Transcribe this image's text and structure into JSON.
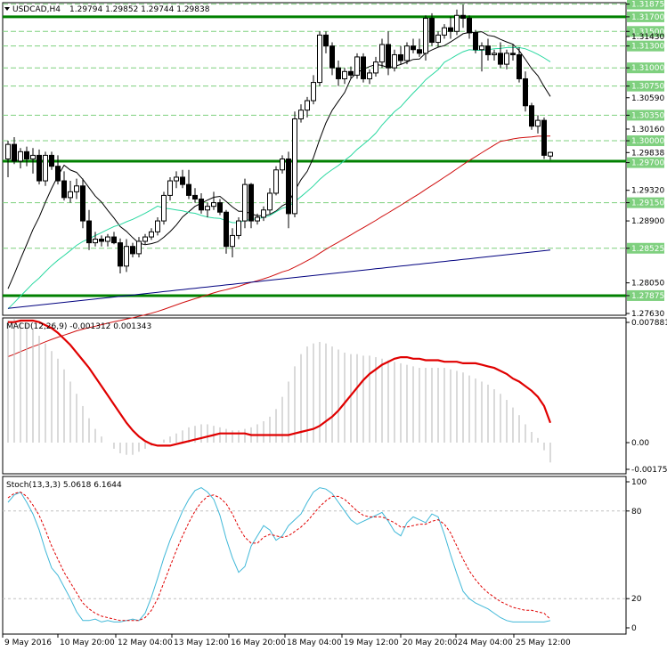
{
  "header": {
    "symbol": "USDCAD,H4",
    "ohlc": "1.29794 1.29852 1.29744 1.29838"
  },
  "colors": {
    "bull": "#ffffff",
    "bear": "#000000",
    "ma_fast": "#000000",
    "ma_mid": "#2ad8a0",
    "ma_slow": "#d01010",
    "ma_long": "#00007f",
    "level": "#008000",
    "level_dash": "#7fd07f",
    "macd_line": "#e00000",
    "macd_hist": "#c0c0c0",
    "stoch_main": "#40b8d8",
    "stoch_signal": "#e00000"
  },
  "chart_data": [
    {
      "type": "candlestick",
      "title": "USDCAD,H4",
      "ylim": [
        1.2763,
        1.3187
      ],
      "y_ticks": [
        "1.31875",
        "1.31700",
        "1.31500",
        "1.31430",
        "1.31300",
        "1.31000",
        "1.30750",
        "1.30590",
        "1.30350",
        "1.30160",
        "1.30000",
        "1.29838",
        "1.29700",
        "1.29320",
        "1.29150",
        "1.28900",
        "1.28525",
        "1.28050",
        "1.27875",
        "1.27630"
      ],
      "highlight_levels": [
        "1.31875",
        "1.31700",
        "1.31500",
        "1.31300",
        "1.31000",
        "1.30750",
        "1.30350",
        "1.30000",
        "1.29838",
        "1.29700",
        "1.29150",
        "1.28525",
        "1.27875"
      ],
      "level_tag_prices": [
        1.31875,
        1.317,
        1.315,
        1.313,
        1.31,
        1.3075,
        1.3035,
        1.3,
        1.29838,
        1.297,
        1.2915,
        1.28525,
        1.27875
      ],
      "support_resistance": [
        1.317,
        1.2972,
        1.27875
      ],
      "dashed_levels": [
        1.31875,
        1.315,
        1.313,
        1.31,
        1.3075,
        1.3035,
        1.3,
        1.2915,
        1.28525
      ],
      "x_ticks": [
        "9 May 2016",
        "10 May 20:00",
        "12 May 04:00",
        "13 May 12:00",
        "16 May 20:00",
        "18 May 04:00",
        "19 May 12:00",
        "20 May 20:00",
        "24 May 04:00",
        "25 May 12:00"
      ],
      "candles": [
        [
          1.2975,
          1.3,
          1.295,
          1.2995
        ],
        [
          1.2995,
          1.3005,
          1.2968,
          1.2972
        ],
        [
          1.2972,
          1.299,
          1.2962,
          1.2985
        ],
        [
          1.2985,
          1.2992,
          1.2965,
          1.2975
        ],
        [
          1.2975,
          1.299,
          1.2955,
          1.298
        ],
        [
          1.298,
          1.2988,
          1.294,
          1.2945
        ],
        [
          1.2945,
          1.2985,
          1.2938,
          1.298
        ],
        [
          1.298,
          1.2985,
          1.296,
          1.2965
        ],
        [
          1.2965,
          1.298,
          1.294,
          1.2945
        ],
        [
          1.2945,
          1.2958,
          1.2918,
          1.2922
        ],
        [
          1.2922,
          1.2945,
          1.2915,
          1.293
        ],
        [
          1.293,
          1.2948,
          1.292,
          1.2938
        ],
        [
          1.2938,
          1.2948,
          1.288,
          1.289
        ],
        [
          1.289,
          1.2905,
          1.285,
          1.286
        ],
        [
          1.286,
          1.2875,
          1.2855,
          1.2865
        ],
        [
          1.2865,
          1.287,
          1.2855,
          1.2862
        ],
        [
          1.2862,
          1.2872,
          1.2855,
          1.2868
        ],
        [
          1.2868,
          1.2875,
          1.2858,
          1.286
        ],
        [
          1.286,
          1.2866,
          1.2818,
          1.2828
        ],
        [
          1.2828,
          1.2865,
          1.282,
          1.2855
        ],
        [
          1.2855,
          1.286,
          1.284,
          1.2845
        ],
        [
          1.2845,
          1.2868,
          1.284,
          1.2862
        ],
        [
          1.2862,
          1.2872,
          1.2858,
          1.2868
        ],
        [
          1.2868,
          1.288,
          1.2864,
          1.2875
        ],
        [
          1.2875,
          1.2895,
          1.287,
          1.289
        ],
        [
          1.289,
          1.293,
          1.2885,
          1.2925
        ],
        [
          1.2925,
          1.295,
          1.2918,
          1.2945
        ],
        [
          1.2945,
          1.2958,
          1.2935,
          1.295
        ],
        [
          1.295,
          1.296,
          1.2935,
          1.294
        ],
        [
          1.294,
          1.296,
          1.292,
          1.2925
        ],
        [
          1.2925,
          1.2935,
          1.2915,
          1.292
        ],
        [
          1.292,
          1.2928,
          1.29,
          1.2905
        ],
        [
          1.2905,
          1.2915,
          1.2895,
          1.291
        ],
        [
          1.291,
          1.293,
          1.2905,
          1.2915
        ],
        [
          1.2915,
          1.292,
          1.2898,
          1.2902
        ],
        [
          1.2902,
          1.2905,
          1.2845,
          1.2855
        ],
        [
          1.2855,
          1.288,
          1.284,
          1.287
        ],
        [
          1.287,
          1.2895,
          1.2865,
          1.289
        ],
        [
          1.289,
          1.2948,
          1.288,
          1.294
        ],
        [
          1.294,
          1.2942,
          1.288,
          1.289
        ],
        [
          1.289,
          1.29,
          1.2885,
          1.2895
        ],
        [
          1.2895,
          1.291,
          1.289,
          1.2905
        ],
        [
          1.2905,
          1.2935,
          1.29,
          1.2928
        ],
        [
          1.2928,
          1.2965,
          1.2925,
          1.296
        ],
        [
          1.296,
          1.298,
          1.2955,
          1.2975
        ],
        [
          1.2975,
          1.2985,
          1.288,
          1.29
        ],
        [
          1.29,
          1.304,
          1.2895,
          1.303
        ],
        [
          1.303,
          1.305,
          1.3025,
          1.3042
        ],
        [
          1.3042,
          1.306,
          1.3032,
          1.3055
        ],
        [
          1.3055,
          1.309,
          1.305,
          1.308
        ],
        [
          1.308,
          1.315,
          1.3075,
          1.3145
        ],
        [
          1.3145,
          1.315,
          1.312,
          1.313
        ],
        [
          1.313,
          1.3135,
          1.309,
          1.31
        ],
        [
          1.31,
          1.311,
          1.3075,
          1.3085
        ],
        [
          1.3085,
          1.31,
          1.3078,
          1.3095
        ],
        [
          1.3095,
          1.3102,
          1.3085,
          1.309
        ],
        [
          1.309,
          1.312,
          1.3085,
          1.3115
        ],
        [
          1.3115,
          1.312,
          1.308,
          1.3085
        ],
        [
          1.3085,
          1.3098,
          1.3078,
          1.3093
        ],
        [
          1.3093,
          1.3115,
          1.3088,
          1.3108
        ],
        [
          1.3108,
          1.314,
          1.31,
          1.3132
        ],
        [
          1.3132,
          1.315,
          1.309,
          1.31
        ],
        [
          1.31,
          1.3125,
          1.3095,
          1.3118
        ],
        [
          1.3118,
          1.313,
          1.3105,
          1.311
        ],
        [
          1.311,
          1.3135,
          1.3105,
          1.313
        ],
        [
          1.313,
          1.314,
          1.312,
          1.3125
        ],
        [
          1.3125,
          1.314,
          1.3115,
          1.312
        ],
        [
          1.312,
          1.3172,
          1.311,
          1.3168
        ],
        [
          1.3168,
          1.3175,
          1.313,
          1.3135
        ],
        [
          1.3135,
          1.315,
          1.3128,
          1.3145
        ],
        [
          1.3145,
          1.316,
          1.314,
          1.3155
        ],
        [
          1.3155,
          1.317,
          1.314,
          1.315
        ],
        [
          1.315,
          1.318,
          1.3145,
          1.3172
        ],
        [
          1.3172,
          1.3187,
          1.3155,
          1.3168
        ],
        [
          1.3168,
          1.3172,
          1.314,
          1.3148
        ],
        [
          1.3148,
          1.3152,
          1.312,
          1.3125
        ],
        [
          1.3125,
          1.3135,
          1.3095,
          1.313
        ],
        [
          1.313,
          1.314,
          1.311,
          1.3118
        ],
        [
          1.3118,
          1.3125,
          1.311,
          1.312
        ],
        [
          1.312,
          1.3135,
          1.31,
          1.3105
        ],
        [
          1.3105,
          1.3125,
          1.3098,
          1.312
        ],
        [
          1.312,
          1.3132,
          1.311,
          1.3118
        ],
        [
          1.3118,
          1.3128,
          1.308,
          1.3085
        ],
        [
          1.3085,
          1.3095,
          1.304,
          1.3048
        ],
        [
          1.3048,
          1.3052,
          1.3015,
          1.302
        ],
        [
          1.302,
          1.3035,
          1.301,
          1.3028
        ],
        [
          1.3028,
          1.3032,
          1.2975,
          1.298
        ],
        [
          1.2979,
          1.2985,
          1.2974,
          1.2984
        ]
      ]
    },
    {
      "type": "line",
      "title": "MACD(12,26,9) -0.001312 0.001343",
      "y_ticks": [
        "0.007881",
        "0.00",
        "-0.00175"
      ],
      "ylim": [
        -0.00175,
        0.007881
      ],
      "histogram": [
        0.008,
        0.0081,
        0.008,
        0.0078,
        0.0075,
        0.007,
        0.0065,
        0.006,
        0.0055,
        0.0048,
        0.004,
        0.0032,
        0.0024,
        0.0016,
        0.0009,
        0.0004,
        0.0,
        -0.0004,
        -0.0007,
        -0.0008,
        -0.0008,
        -0.0006,
        -0.0004,
        -0.0002,
        0.0,
        0.0002,
        0.0004,
        0.0006,
        0.0008,
        0.001,
        0.0011,
        0.0012,
        0.0012,
        0.0011,
        0.001,
        0.0009,
        0.0008,
        0.0008,
        0.0009,
        0.001,
        0.0012,
        0.0014,
        0.0017,
        0.0022,
        0.003,
        0.004,
        0.005,
        0.0058,
        0.0063,
        0.0065,
        0.0066,
        0.0065,
        0.0063,
        0.0061,
        0.0059,
        0.0058,
        0.0058,
        0.0057,
        0.0057,
        0.0056,
        0.0055,
        0.0054,
        0.0053,
        0.0052,
        0.0051,
        0.005,
        0.0049,
        0.0049,
        0.0049,
        0.0049,
        0.0049,
        0.0048,
        0.0047,
        0.0046,
        0.0044,
        0.0042,
        0.004,
        0.0038,
        0.0035,
        0.0032,
        0.0028,
        0.0023,
        0.0018,
        0.0012,
        0.0007,
        0.0003,
        -0.0005,
        -0.0013
      ],
      "signal": [
        0.0079,
        0.0079,
        0.008,
        0.008,
        0.008,
        0.0079,
        0.0077,
        0.0075,
        0.0072,
        0.0068,
        0.0064,
        0.0059,
        0.0054,
        0.0049,
        0.0043,
        0.0037,
        0.0031,
        0.0025,
        0.0019,
        0.0013,
        0.0008,
        0.0004,
        0.0001,
        -0.0001,
        -0.0002,
        -0.0002,
        -0.0002,
        -0.0001,
        0.0,
        0.0001,
        0.0002,
        0.0003,
        0.0004,
        0.0005,
        0.0006,
        0.0006,
        0.0006,
        0.0006,
        0.0006,
        0.0005,
        0.0005,
        0.0005,
        0.0005,
        0.0005,
        0.0005,
        0.0005,
        0.0006,
        0.0007,
        0.0008,
        0.0009,
        0.0011,
        0.0014,
        0.0017,
        0.0021,
        0.0026,
        0.0031,
        0.0036,
        0.0041,
        0.0045,
        0.0048,
        0.0051,
        0.0053,
        0.0055,
        0.0056,
        0.0056,
        0.0055,
        0.0055,
        0.0054,
        0.0054,
        0.0054,
        0.0053,
        0.0053,
        0.0053,
        0.0052,
        0.0052,
        0.0052,
        0.0051,
        0.005,
        0.0049,
        0.0047,
        0.0045,
        0.0042,
        0.004,
        0.0037,
        0.0034,
        0.003,
        0.0024,
        0.0013
      ]
    },
    {
      "type": "line",
      "title": "Stoch(13,3,3) 5.0618 6.1644",
      "y_ticks": [
        "100",
        "80",
        "20",
        "0"
      ],
      "ylim": [
        0,
        100
      ],
      "main": [
        86,
        91,
        93,
        86,
        78,
        67,
        53,
        41,
        36,
        28,
        20,
        11,
        5,
        5,
        6,
        4,
        5,
        4,
        4,
        5,
        6,
        5,
        10,
        21,
        34,
        48,
        60,
        70,
        80,
        88,
        94,
        96,
        93,
        88,
        77,
        61,
        48,
        38,
        42,
        56,
        63,
        70,
        67,
        60,
        63,
        70,
        74,
        78,
        86,
        93,
        96,
        95,
        92,
        86,
        80,
        74,
        71,
        73,
        75,
        77,
        79,
        73,
        66,
        63,
        72,
        76,
        74,
        72,
        78,
        76,
        64,
        50,
        37,
        25,
        20,
        17,
        15,
        13,
        10,
        7,
        5,
        4,
        4,
        4,
        4,
        4,
        4,
        5
      ],
      "signal": [
        89,
        92,
        93,
        90,
        84,
        77,
        67,
        56,
        47,
        38,
        31,
        24,
        17,
        13,
        10,
        8,
        7,
        6,
        5,
        5,
        5,
        5,
        7,
        12,
        20,
        31,
        42,
        53,
        63,
        72,
        80,
        86,
        90,
        91,
        89,
        85,
        78,
        69,
        62,
        58,
        58,
        62,
        64,
        63,
        62,
        63,
        66,
        69,
        73,
        78,
        83,
        87,
        90,
        90,
        88,
        84,
        80,
        77,
        76,
        76,
        76,
        74,
        72,
        69,
        69,
        70,
        71,
        71,
        73,
        74,
        71,
        65,
        56,
        47,
        39,
        33,
        28,
        24,
        21,
        18,
        16,
        14,
        13,
        12,
        12,
        11,
        10,
        6
      ]
    }
  ]
}
